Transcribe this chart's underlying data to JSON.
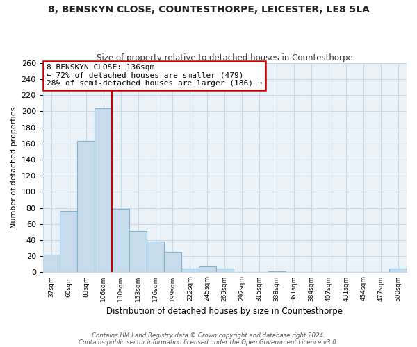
{
  "title": "8, BENSKYN CLOSE, COUNTESTHORPE, LEICESTER, LE8 5LA",
  "subtitle": "Size of property relative to detached houses in Countesthorpe",
  "xlabel": "Distribution of detached houses by size in Countesthorpe",
  "ylabel": "Number of detached properties",
  "bin_labels": [
    "37sqm",
    "60sqm",
    "83sqm",
    "106sqm",
    "130sqm",
    "153sqm",
    "176sqm",
    "199sqm",
    "222sqm",
    "245sqm",
    "269sqm",
    "292sqm",
    "315sqm",
    "338sqm",
    "361sqm",
    "384sqm",
    "407sqm",
    "431sqm",
    "454sqm",
    "477sqm",
    "500sqm"
  ],
  "bar_heights": [
    22,
    76,
    163,
    204,
    79,
    51,
    38,
    25,
    5,
    7,
    5,
    0,
    0,
    1,
    0,
    0,
    0,
    0,
    0,
    0,
    5
  ],
  "bar_color": "#c6dcec",
  "bar_edge_color": "#7fb3d0",
  "vline_x": 3.5,
  "vline_color": "#cc0000",
  "annotation_text": "8 BENSKYN CLOSE: 136sqm\n← 72% of detached houses are smaller (479)\n28% of semi-detached houses are larger (186) →",
  "annotation_box_color": "#ffffff",
  "annotation_box_edge": "#cc0000",
  "ylim": [
    0,
    260
  ],
  "yticks": [
    0,
    20,
    40,
    60,
    80,
    100,
    120,
    140,
    160,
    180,
    200,
    220,
    240,
    260
  ],
  "footer_line1": "Contains HM Land Registry data © Crown copyright and database right 2024.",
  "footer_line2": "Contains public sector information licensed under the Open Government Licence v3.0.",
  "bg_color": "#ffffff",
  "grid_color": "#c8d8e8",
  "plot_bg_color": "#eaf2f8"
}
